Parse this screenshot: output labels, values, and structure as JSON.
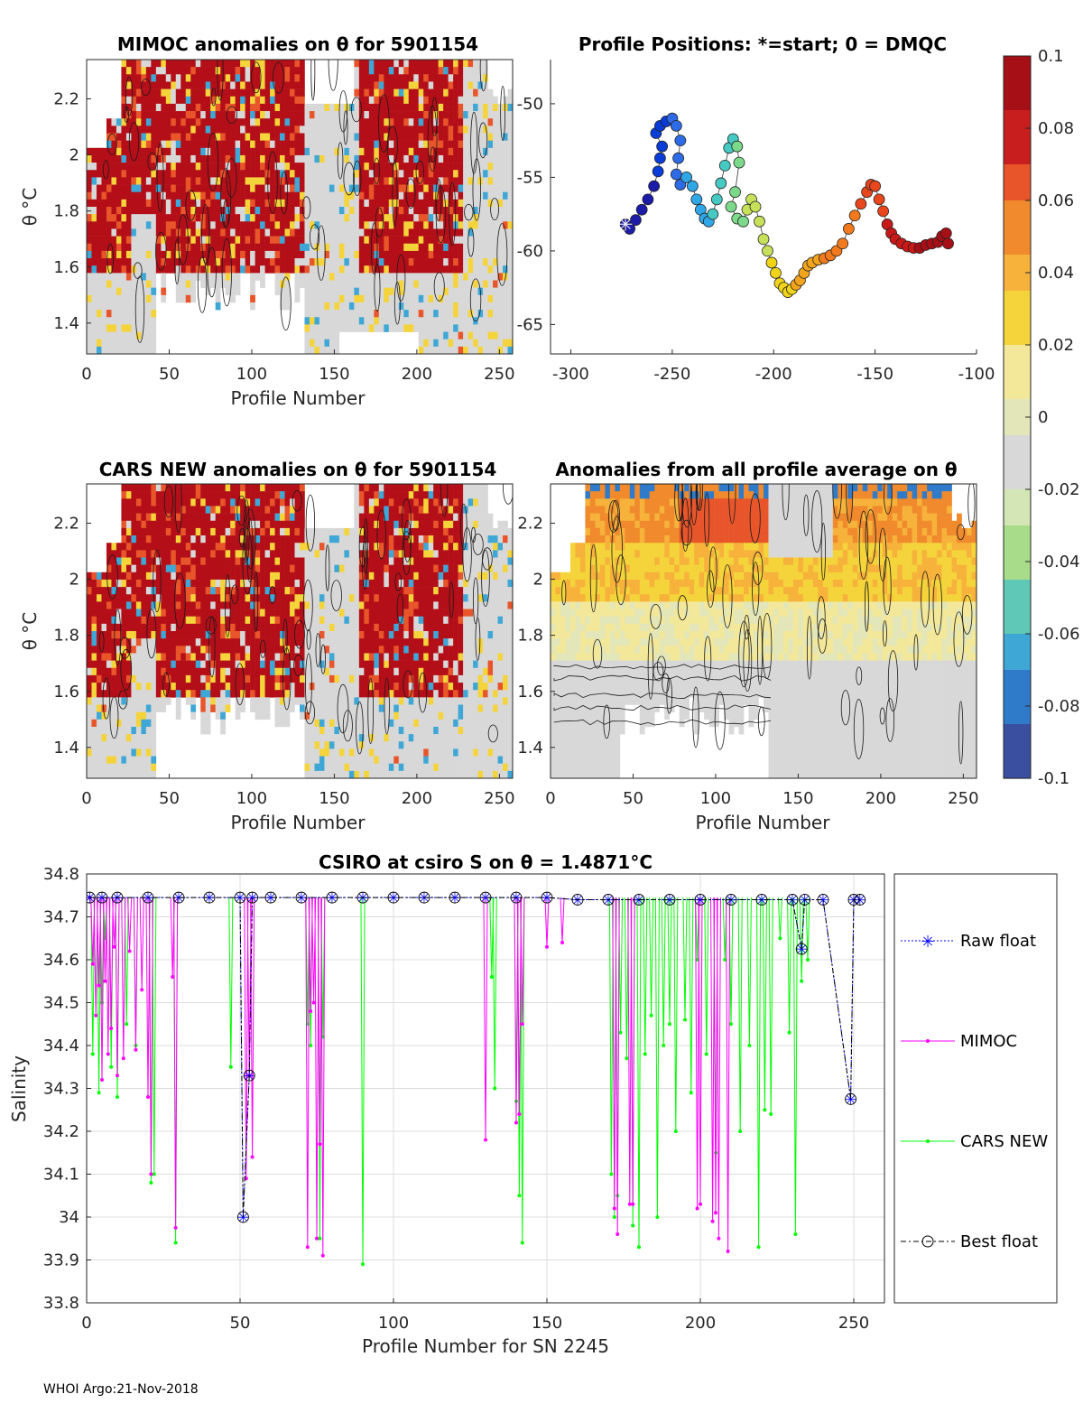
{
  "footer": "WHOI Argo:21-Nov-2018",
  "colorbar": {
    "ticks": [
      "0.1",
      "0.08",
      "0.06",
      "0.04",
      "0.02",
      "0",
      "-0.02",
      "-0.04",
      "-0.06",
      "-0.08",
      "-0.1"
    ],
    "colors": [
      "#3a4fa0",
      "#2f7ac9",
      "#3fa7d6",
      "#5fc8b6",
      "#a9dc8a",
      "#e3e6b8",
      "#d8d8d8",
      "#f3e89a",
      "#f4d43a",
      "#f6b23a",
      "#f08a2c",
      "#e8552a",
      "#c81e1e",
      "#a50f15"
    ]
  },
  "panel1": {
    "title": "MIMOC anomalies on θ  for 5901154",
    "ylabel": "θ °C",
    "xlabel": "Profile Number",
    "xticks": [
      "0",
      "50",
      "100",
      "150",
      "200",
      "250"
    ],
    "yticks": [
      "2.2",
      "2",
      "1.8",
      "1.6",
      "1.4"
    ]
  },
  "panel2": {
    "title": "Profile Positions: *=start; 0 = DMQC",
    "xticks": [
      "-300",
      "-250",
      "-200",
      "-150",
      "-100"
    ],
    "yticks": [
      "-50",
      "-55",
      "-60",
      "-65"
    ]
  },
  "panel3": {
    "title": "CARS NEW anomalies on θ for 5901154",
    "ylabel": "θ °C",
    "xlabel": "Profile Number",
    "xticks": [
      "0",
      "50",
      "100",
      "150",
      "200",
      "250"
    ],
    "yticks": [
      "2.2",
      "2",
      "1.8",
      "1.6",
      "1.4"
    ]
  },
  "panel4": {
    "title": "Anomalies from all profile average on θ",
    "xlabel": "Profile Number",
    "xticks": [
      "0",
      "50",
      "100",
      "150",
      "200",
      "250"
    ],
    "yticks": [
      "2.2",
      "2",
      "1.8",
      "1.6",
      "1.4"
    ]
  },
  "panel5": {
    "title": "CSIRO at csiro S on θ = 1.4871°C",
    "ylabel": "Salinity",
    "xlabel": "Profile Number for SN 2245",
    "xticks": [
      "0",
      "50",
      "100",
      "150",
      "200",
      "250"
    ],
    "yticks": [
      "34.8",
      "34.7",
      "34.6",
      "34.5",
      "34.4",
      "34.3",
      "34.2",
      "34.1",
      "34",
      "33.9",
      "33.8"
    ]
  },
  "legend": {
    "raw": "Raw float",
    "mimoc": "MIMOC",
    "cars": "CARS NEW",
    "best": "Best float"
  },
  "colors": {
    "raw": "#0000ff",
    "mimoc": "#ff00ff",
    "cars": "#00ff00",
    "best": "#000000"
  },
  "chart_data": [
    {
      "type": "heatmap",
      "title": "MIMOC anomalies on θ  for 5901154",
      "xlabel": "Profile Number",
      "ylabel": "θ °C",
      "xlim": [
        0,
        258
      ],
      "ylim": [
        1.29,
        2.34
      ],
      "colorbar_range": [
        -0.1,
        0.1
      ]
    },
    {
      "type": "scatter",
      "title": "Profile Positions: *=start; 0 = DMQC",
      "xlim": [
        -310,
        -100
      ],
      "ylim": [
        -67,
        -47
      ],
      "x": [
        -273,
        -271,
        -268,
        -265,
        -262,
        -259,
        -257,
        -256,
        -255,
        -258,
        -256,
        -253,
        -250,
        -248,
        -246,
        -247,
        -248,
        -246,
        -243,
        -240,
        -238,
        -236,
        -234,
        -232,
        -230,
        -228,
        -226,
        -224,
        -222,
        -220,
        -218,
        -217,
        -219,
        -221,
        -218,
        -215,
        -213,
        -211,
        -209,
        -207,
        -205,
        -203,
        -201,
        -199,
        -197,
        -195,
        -193,
        -191,
        -189,
        -187,
        -185,
        -183,
        -181,
        -178,
        -175,
        -172,
        -169,
        -166,
        -163,
        -160,
        -157,
        -154,
        -152,
        -150,
        -148,
        -146,
        -144,
        -142,
        -140,
        -137,
        -134,
        -131,
        -128,
        -125,
        -122,
        -119,
        -117,
        -115,
        -114
      ],
      "y": [
        -58.2,
        -58.5,
        -57.9,
        -57.2,
        -56.5,
        -55.6,
        -54.6,
        -53.7,
        -52.9,
        -52.0,
        -51.5,
        -51.2,
        -51.0,
        -51.5,
        -52.5,
        -53.7,
        -54.8,
        -55.5,
        -55.0,
        -55.6,
        -56.5,
        -57.2,
        -57.8,
        -58.0,
        -57.5,
        -56.5,
        -55.4,
        -54.2,
        -53.0,
        -52.4,
        -52.9,
        -54.0,
        -56.0,
        -57.0,
        -57.8,
        -58.0,
        -57.2,
        -56.5,
        -57.0,
        -58.0,
        -59.2,
        -60.0,
        -60.8,
        -61.5,
        -62.2,
        -62.5,
        -62.8,
        -62.6,
        -62.3,
        -62.0,
        -61.5,
        -61.0,
        -60.8,
        -60.6,
        -60.5,
        -60.3,
        -60.0,
        -59.5,
        -58.5,
        -57.6,
        -56.8,
        -56.0,
        -55.5,
        -55.6,
        -56.5,
        -57.3,
        -58.2,
        -58.8,
        -59.2,
        -59.5,
        -59.7,
        -59.8,
        -59.8,
        -59.6,
        -59.5,
        -59.4,
        -59.0,
        -58.8,
        -59.5
      ]
    },
    {
      "type": "heatmap",
      "title": "CARS NEW anomalies on θ for 5901154",
      "xlabel": "Profile Number",
      "ylabel": "θ °C",
      "xlim": [
        0,
        258
      ],
      "ylim": [
        1.29,
        2.34
      ],
      "colorbar_range": [
        -0.1,
        0.1
      ]
    },
    {
      "type": "heatmap",
      "title": "Anomalies from all profile average on θ",
      "xlabel": "Profile Number",
      "xlim": [
        0,
        258
      ],
      "ylim": [
        1.29,
        2.34
      ],
      "colorbar_range": [
        -0.1,
        0.1
      ]
    },
    {
      "type": "line",
      "title": "CSIRO at csiro S on θ = 1.4871°C",
      "xlabel": "Profile Number for SN 2245",
      "ylabel": "Salinity",
      "xlim": [
        0,
        260
      ],
      "ylim": [
        33.8,
        34.8
      ],
      "series": [
        {
          "name": "Raw float",
          "x": [
            1,
            5,
            10,
            20,
            30,
            40,
            50,
            51,
            53,
            54,
            60,
            70,
            80,
            90,
            100,
            110,
            120,
            130,
            140,
            150,
            160,
            170,
            180,
            190,
            200,
            210,
            220,
            230,
            233,
            234,
            240,
            249,
            250,
            252
          ],
          "y": [
            34.745,
            34.745,
            34.745,
            34.745,
            34.745,
            34.745,
            34.745,
            34.0,
            34.33,
            34.745,
            34.745,
            34.745,
            34.745,
            34.745,
            34.745,
            34.745,
            34.745,
            34.745,
            34.745,
            34.745,
            34.74,
            34.74,
            34.74,
            34.74,
            34.74,
            34.74,
            34.74,
            34.74,
            34.625,
            34.74,
            34.74,
            34.275,
            34.74,
            34.74
          ]
        },
        {
          "name": "MIMOC",
          "x": [
            1,
            2,
            3,
            4,
            5,
            6,
            7,
            8,
            9,
            10,
            12,
            14,
            16,
            18,
            20,
            21,
            28,
            29,
            52,
            53,
            54,
            72,
            73,
            74,
            75,
            76,
            77,
            130,
            140,
            141,
            142,
            150,
            155,
            172,
            173,
            177,
            178,
            199,
            200,
            204,
            205,
            206,
            209
          ],
          "y": [
            34.745,
            34.59,
            34.47,
            34.54,
            34.32,
            34.55,
            34.38,
            34.44,
            34.63,
            34.33,
            34.37,
            34.62,
            34.39,
            34.53,
            34.28,
            34.1,
            34.56,
            33.975,
            34.09,
            34.33,
            34.14,
            33.93,
            34.48,
            34.5,
            33.95,
            34.17,
            33.91,
            34.18,
            34.22,
            34.24,
            34.45,
            34.63,
            34.64,
            34.02,
            33.96,
            34.03,
            34.03,
            34.02,
            34.03,
            33.99,
            34.01,
            33.95,
            33.92
          ]
        },
        {
          "name": "CARS NEW",
          "x": [
            1,
            2,
            4,
            5,
            6,
            8,
            10,
            13,
            16,
            21,
            22,
            29,
            47,
            72,
            73,
            76,
            77,
            90,
            132,
            133,
            140,
            141,
            142,
            171,
            172,
            173,
            174,
            176,
            178,
            180,
            182,
            184,
            186,
            188,
            190,
            192,
            195,
            197,
            199,
            202,
            205,
            208,
            210,
            213,
            216,
            219,
            221,
            223,
            226,
            229,
            231,
            233,
            235
          ],
          "y": [
            34.745,
            34.38,
            34.29,
            34.5,
            34.65,
            34.35,
            34.28,
            34.45,
            34.4,
            34.08,
            34.1,
            33.94,
            34.35,
            34.45,
            34.4,
            33.95,
            34.42,
            33.89,
            34.56,
            34.3,
            34.27,
            34.05,
            33.94,
            34.1,
            34.0,
            34.05,
            34.43,
            34.37,
            33.98,
            33.93,
            34.38,
            34.47,
            34.0,
            34.4,
            34.45,
            34.2,
            34.46,
            34.29,
            34.6,
            34.38,
            34.15,
            34.6,
            34.45,
            34.2,
            34.4,
            33.93,
            34.25,
            34.24,
            34.65,
            34.43,
            33.96,
            34.55,
            34.6
          ]
        },
        {
          "name": "Best float",
          "x": [
            1,
            5,
            10,
            20,
            30,
            40,
            50,
            51,
            53,
            54,
            60,
            70,
            80,
            90,
            100,
            110,
            120,
            130,
            140,
            150,
            160,
            170,
            180,
            190,
            200,
            210,
            220,
            230,
            233,
            234,
            240,
            249,
            250,
            252
          ],
          "y": [
            34.745,
            34.745,
            34.745,
            34.745,
            34.745,
            34.745,
            34.745,
            34.0,
            34.33,
            34.745,
            34.745,
            34.745,
            34.745,
            34.745,
            34.745,
            34.745,
            34.745,
            34.745,
            34.745,
            34.745,
            34.74,
            34.74,
            34.74,
            34.74,
            34.74,
            34.74,
            34.74,
            34.74,
            34.625,
            34.74,
            34.74,
            34.275,
            34.74,
            34.74
          ]
        }
      ]
    }
  ]
}
